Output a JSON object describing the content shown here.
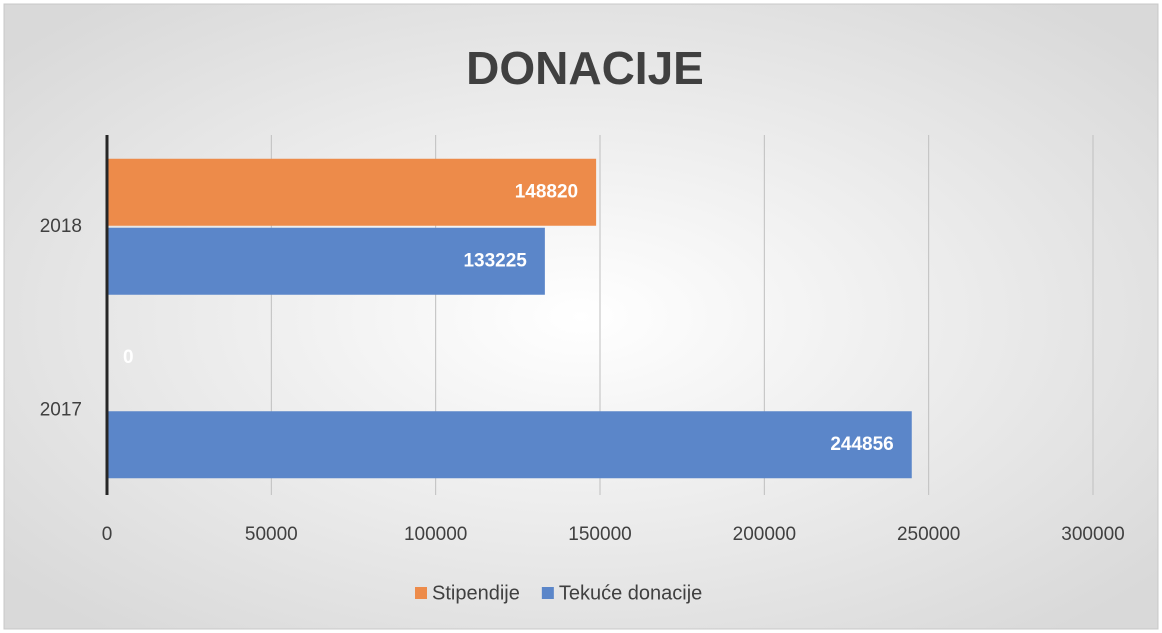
{
  "chart_data": {
    "type": "bar",
    "orientation": "horizontal",
    "title": "DONACIJE",
    "categories": [
      "2017",
      "2018"
    ],
    "series": [
      {
        "name": "Stipendije",
        "color": "#ed8b4a",
        "values": [
          0,
          148820
        ]
      },
      {
        "name": "Tekuće donacije",
        "color": "#5b86c9",
        "values": [
          244856,
          133225
        ]
      }
    ],
    "xlim": [
      0,
      300000
    ],
    "xticks": [
      0,
      50000,
      100000,
      150000,
      200000,
      250000,
      300000
    ],
    "grid": true,
    "legend": "bottom"
  }
}
